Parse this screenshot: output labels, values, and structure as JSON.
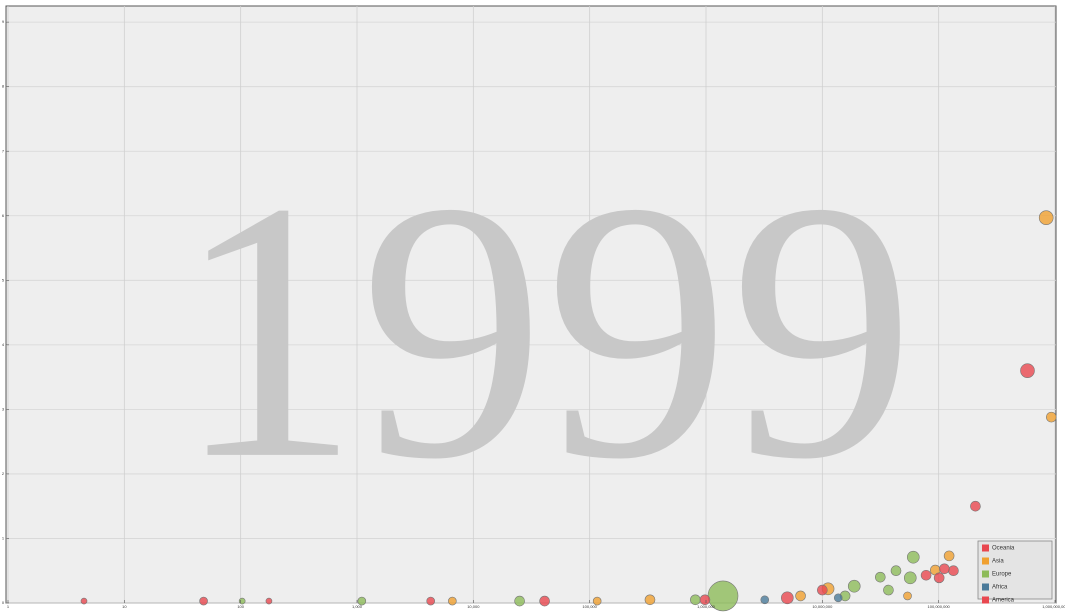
{
  "chart_data": {
    "type": "bubble",
    "watermark": "1999",
    "x_log": true,
    "grid": true,
    "legend_position": "lower right",
    "xlim": [
      1,
      1000000000
    ],
    "ylim": [
      0,
      9.25
    ],
    "xticks": [
      1,
      10,
      100,
      {
        "value": 1000,
        "label": "1,000"
      },
      {
        "value": 10000,
        "label": "10,000"
      },
      {
        "value": 100000,
        "label": "100,000"
      },
      {
        "value": 1000000,
        "label": "1,000,000"
      },
      {
        "value": 10000000,
        "label": "10,000,000"
      },
      {
        "value": 100000000,
        "label": "100,000,000"
      },
      {
        "value": 1000000000,
        "label": "1,000,000,000"
      }
    ],
    "yticks": [
      0,
      1,
      2,
      3,
      4,
      5,
      6,
      7,
      8,
      9
    ],
    "series": [
      {
        "name": "Oceania",
        "color": "#e8474f",
        "x": [
          580000000,
          207000000,
          134000000
        ],
        "values": [
          3.6,
          1.5,
          0.5
        ],
        "sizes": [
          49,
          25,
          25
        ]
      },
      {
        "name": "Asia",
        "color": "#f0a030",
        "x": [
          840000000,
          930000000,
          123000000,
          93500000,
          54000000,
          11200000,
          6500000,
          330000,
          116000,
          6600
        ],
        "values": [
          5.97,
          2.88,
          0.73,
          0.51,
          0.11,
          0.22,
          0.11,
          0.05,
          0.03,
          0.03
        ],
        "sizes": [
          49,
          25,
          25,
          25,
          16,
          36,
          25,
          25,
          16,
          16
        ]
      },
      {
        "name": "Europe",
        "color": "#8dbb5a",
        "x": [
          60500000,
          43000000,
          31500000,
          37000000,
          57000000,
          18800000,
          1400000,
          15700000,
          810000,
          25000,
          1100,
          103
        ],
        "values": [
          0.71,
          0.5,
          0.4,
          0.2,
          0.39,
          0.26,
          0.11,
          0.11,
          0.05,
          0.03,
          0.03,
          0.03
        ],
        "sizes": [
          36,
          25,
          25,
          25,
          36,
          36,
          225,
          25,
          25,
          25,
          16,
          9
        ]
      },
      {
        "name": "Africa",
        "color": "#4a7a9a",
        "x": [
          13700000,
          3200000
        ],
        "values": [
          0.08,
          0.05
        ],
        "sizes": [
          16,
          16
        ]
      },
      {
        "name": "America",
        "color": "#e8474f",
        "x": [
          112000000,
          101000000,
          78000000,
          10000000,
          5000000,
          980000,
          41000,
          4300,
          48,
          4.5,
          175
        ],
        "values": [
          0.53,
          0.39,
          0.43,
          0.2,
          0.08,
          0.05,
          0.03,
          0.03,
          0.03,
          0.03,
          0.03
        ],
        "sizes": [
          25,
          25,
          25,
          25,
          36,
          25,
          25,
          16,
          16,
          9,
          9
        ]
      }
    ]
  }
}
